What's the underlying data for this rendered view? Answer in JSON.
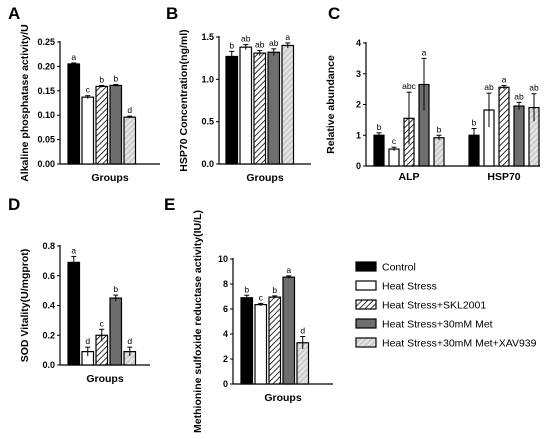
{
  "colors": {
    "control": "#000000",
    "heat_stress": "#ffffff",
    "skl2001": "hatch-light",
    "met": "#6e6e6e",
    "met_xav939": "hatch-gray"
  },
  "legend": {
    "items": [
      {
        "key": "control",
        "label": "Control"
      },
      {
        "key": "heat_stress",
        "label": "Heat Stress"
      },
      {
        "key": "skl2001",
        "label": "Heat Stress+SKL2001"
      },
      {
        "key": "met",
        "label": "Heat Stress+30mM Met"
      },
      {
        "key": "met_xav939",
        "label": "Heat Stress+30mM Met+XAV939"
      }
    ]
  },
  "chart_data": [
    {
      "panel": "A",
      "type": "bar",
      "xlabel": "Groups",
      "ylabel": "Alkaline phosphatase activity/U",
      "ylim": [
        0,
        0.25
      ],
      "yticks": [
        "0.00",
        "0.05",
        "0.10",
        "0.15",
        "0.20",
        "0.25"
      ],
      "groups": [
        {
          "label": "",
          "bars": [
            {
              "key": "control",
              "value": 0.205,
              "err": 0.002,
              "sig": "a"
            },
            {
              "key": "heat_stress",
              "value": 0.137,
              "err": 0.003,
              "sig": "c"
            },
            {
              "key": "skl2001",
              "value": 0.159,
              "err": 0.002,
              "sig": "b"
            },
            {
              "key": "met",
              "value": 0.161,
              "err": 0.002,
              "sig": "b"
            },
            {
              "key": "met_xav939",
              "value": 0.096,
              "err": 0.002,
              "sig": "d"
            }
          ]
        }
      ]
    },
    {
      "panel": "B",
      "type": "bar",
      "xlabel": "Groups",
      "ylabel": "HSP70 Concentration(ng/ml)",
      "ylim": [
        0,
        1.5
      ],
      "yticks": [
        "0.0",
        "0.5",
        "1.0",
        "1.5"
      ],
      "groups": [
        {
          "label": "",
          "bars": [
            {
              "key": "control",
              "value": 1.27,
              "err": 0.06,
              "sig": "b"
            },
            {
              "key": "heat_stress",
              "value": 1.38,
              "err": 0.03,
              "sig": "ab"
            },
            {
              "key": "skl2001",
              "value": 1.31,
              "err": 0.03,
              "sig": "ab"
            },
            {
              "key": "met",
              "value": 1.32,
              "err": 0.04,
              "sig": "ab"
            },
            {
              "key": "met_xav939",
              "value": 1.4,
              "err": 0.03,
              "sig": "a"
            }
          ]
        }
      ]
    },
    {
      "panel": "C",
      "type": "bar",
      "xlabel": "",
      "ylabel": "Relative abundance",
      "ylim": [
        0,
        4
      ],
      "yticks": [
        "0",
        "1",
        "2",
        "3",
        "4"
      ],
      "groups": [
        {
          "label": "ALP",
          "bars": [
            {
              "key": "control",
              "value": 1.0,
              "err": 0.08,
              "sig": "b"
            },
            {
              "key": "heat_stress",
              "value": 0.55,
              "err": 0.06,
              "sig": "c"
            },
            {
              "key": "skl2001",
              "value": 1.55,
              "err": 0.85,
              "sig": "abc"
            },
            {
              "key": "met",
              "value": 2.65,
              "err": 0.85,
              "sig": "a"
            },
            {
              "key": "met_xav939",
              "value": 0.92,
              "err": 0.08,
              "sig": "b"
            }
          ]
        },
        {
          "label": "HSP70",
          "bars": [
            {
              "key": "control",
              "value": 1.0,
              "err": 0.22,
              "sig": "b"
            },
            {
              "key": "heat_stress",
              "value": 1.82,
              "err": 0.55,
              "sig": "ab"
            },
            {
              "key": "skl2001",
              "value": 2.56,
              "err": 0.06,
              "sig": "a"
            },
            {
              "key": "met",
              "value": 1.95,
              "err": 0.12,
              "sig": "ab"
            },
            {
              "key": "met_xav939",
              "value": 1.9,
              "err": 0.45,
              "sig": "ab"
            }
          ]
        }
      ]
    },
    {
      "panel": "D",
      "type": "bar",
      "xlabel": "Groups",
      "ylabel": "SOD Vitality(U/mgprot)",
      "ylim": [
        0,
        0.8
      ],
      "yticks": [
        "0.0",
        "0.2",
        "0.4",
        "0.6",
        "0.8"
      ],
      "groups": [
        {
          "label": "",
          "bars": [
            {
              "key": "control",
              "value": 0.69,
              "err": 0.04,
              "sig": "a"
            },
            {
              "key": "heat_stress",
              "value": 0.09,
              "err": 0.03,
              "sig": "d"
            },
            {
              "key": "skl2001",
              "value": 0.2,
              "err": 0.04,
              "sig": "c"
            },
            {
              "key": "met",
              "value": 0.45,
              "err": 0.02,
              "sig": "b"
            },
            {
              "key": "met_xav939",
              "value": 0.09,
              "err": 0.03,
              "sig": "d"
            }
          ]
        }
      ]
    },
    {
      "panel": "E",
      "type": "bar",
      "xlabel": "Groups",
      "ylabel": "Methionine sulfoxide reductase activity(IU/L)",
      "ylim": [
        0,
        10
      ],
      "yticks": [
        "0",
        "2",
        "4",
        "6",
        "8",
        "10"
      ],
      "groups": [
        {
          "label": "",
          "bars": [
            {
              "key": "control",
              "value": 6.9,
              "err": 0.2,
              "sig": "b"
            },
            {
              "key": "heat_stress",
              "value": 6.35,
              "err": 0.1,
              "sig": "c"
            },
            {
              "key": "skl2001",
              "value": 6.95,
              "err": 0.1,
              "sig": "b"
            },
            {
              "key": "met",
              "value": 8.55,
              "err": 0.1,
              "sig": "a"
            },
            {
              "key": "met_xav939",
              "value": 3.3,
              "err": 0.5,
              "sig": "d"
            }
          ]
        }
      ]
    }
  ]
}
